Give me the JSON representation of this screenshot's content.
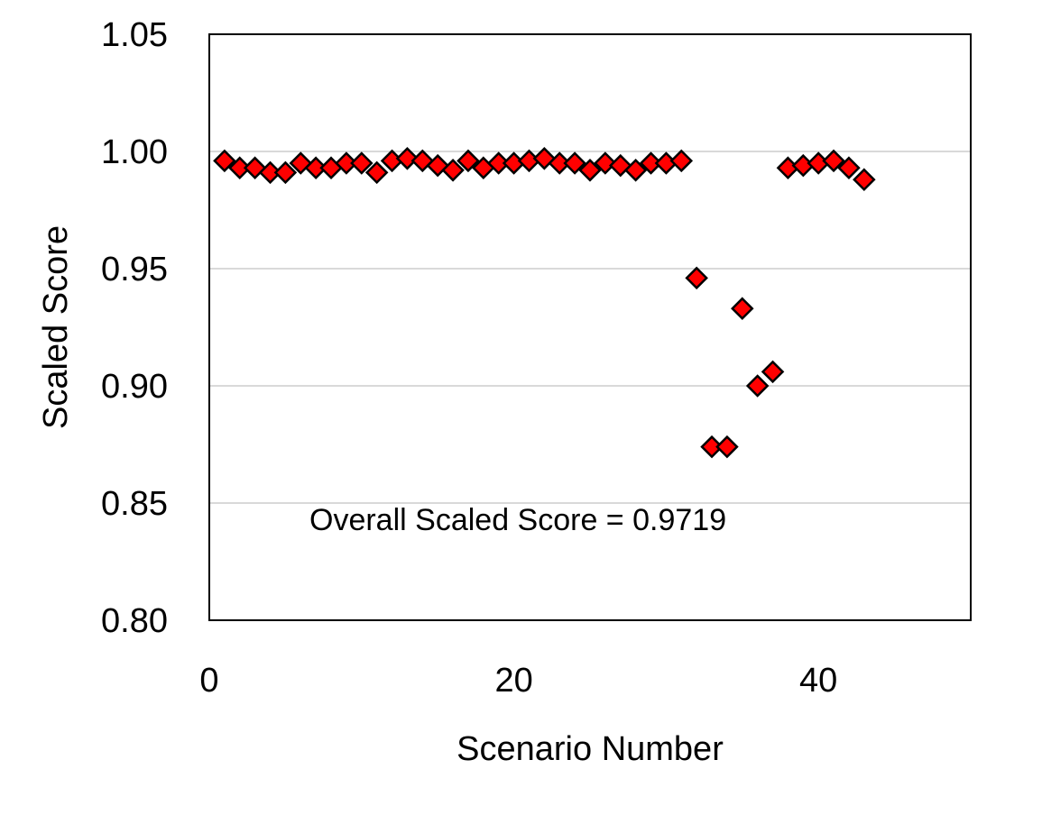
{
  "chart_data": {
    "type": "scatter",
    "title": "",
    "xlabel": "Scenario Number",
    "ylabel": "Scaled Score",
    "xlim": [
      0,
      50
    ],
    "ylim": [
      0.8,
      1.05
    ],
    "x_ticks": [
      0,
      20,
      40
    ],
    "y_ticks": [
      0.8,
      0.85,
      0.9,
      0.95,
      1.0,
      1.05
    ],
    "y_tick_labels": [
      "0.80",
      "0.85",
      "0.90",
      "0.95",
      "1.00",
      "1.05"
    ],
    "x_tick_labels": [
      "0",
      "20",
      "40"
    ],
    "grid": "horizontal",
    "legend": "none",
    "marker": "diamond",
    "marker_color": "#ff0000",
    "annotation": "Overall Scaled Score = 0.9719",
    "series": [
      {
        "x": [
          1,
          2,
          3,
          4,
          5,
          6,
          7,
          8,
          9,
          10,
          11,
          12,
          13,
          14,
          15,
          16,
          17,
          18,
          19,
          20,
          21,
          22,
          23,
          24,
          25,
          26,
          27,
          28,
          29,
          30,
          31,
          32,
          33,
          34,
          35,
          36,
          37,
          38,
          39,
          40,
          41,
          42,
          43
        ],
        "y": [
          0.996,
          0.993,
          0.993,
          0.991,
          0.991,
          0.995,
          0.993,
          0.993,
          0.995,
          0.995,
          0.991,
          0.996,
          0.997,
          0.996,
          0.994,
          0.992,
          0.996,
          0.993,
          0.995,
          0.995,
          0.996,
          0.997,
          0.995,
          0.995,
          0.992,
          0.995,
          0.994,
          0.992,
          0.995,
          0.995,
          0.996,
          0.946,
          0.874,
          0.874,
          0.933,
          0.9,
          0.906,
          0.993,
          0.994,
          0.995,
          0.996,
          0.993,
          0.988
        ]
      }
    ]
  }
}
